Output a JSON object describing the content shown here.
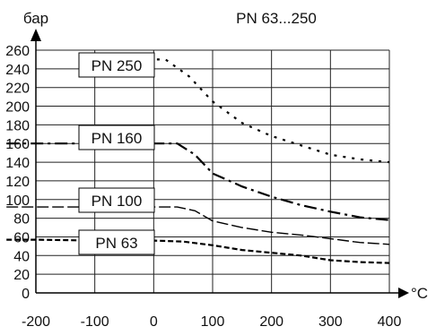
{
  "chart_data": {
    "type": "line",
    "title": "PN 63...250",
    "ylabel": "бар",
    "xlabel": "°C",
    "xlim": [
      -200,
      400
    ],
    "ylim": [
      0,
      260
    ],
    "grid": true,
    "x_ticks": [
      -200,
      -100,
      0,
      100,
      200,
      300,
      400
    ],
    "y_ticks": [
      0,
      20,
      40,
      60,
      80,
      100,
      120,
      140,
      160,
      180,
      200,
      220,
      240,
      260
    ],
    "series": [
      {
        "name": "PN 250",
        "style": "dotted",
        "x": [
          -25,
          0,
          20,
          60,
          100,
          150,
          200,
          250,
          300,
          350,
          400
        ],
        "y": [
          250,
          250,
          250,
          232,
          205,
          182,
          168,
          158,
          148,
          143,
          140
        ]
      },
      {
        "name": "PN 160",
        "style": "dashdot",
        "x": [
          -250,
          -200,
          -100,
          0,
          40,
          70,
          100,
          150,
          200,
          250,
          300,
          350,
          400
        ],
        "y": [
          160,
          160,
          160,
          160,
          160,
          148,
          128,
          114,
          103,
          94,
          87,
          81,
          78
        ]
      },
      {
        "name": "PN 100",
        "style": "longdash",
        "x": [
          -250,
          -200,
          -100,
          0,
          40,
          70,
          100,
          150,
          200,
          250,
          300,
          350,
          400
        ],
        "y": [
          92,
          92,
          92,
          92,
          92,
          88,
          77,
          70,
          65,
          62,
          58,
          54,
          52
        ]
      },
      {
        "name": "PN 63",
        "style": "dashed",
        "x": [
          -250,
          -200,
          -100,
          0,
          50,
          100,
          150,
          200,
          250,
          300,
          350,
          400
        ],
        "y": [
          57,
          57,
          56,
          56,
          55,
          51,
          46,
          43,
          40,
          35,
          33,
          32
        ]
      }
    ]
  }
}
